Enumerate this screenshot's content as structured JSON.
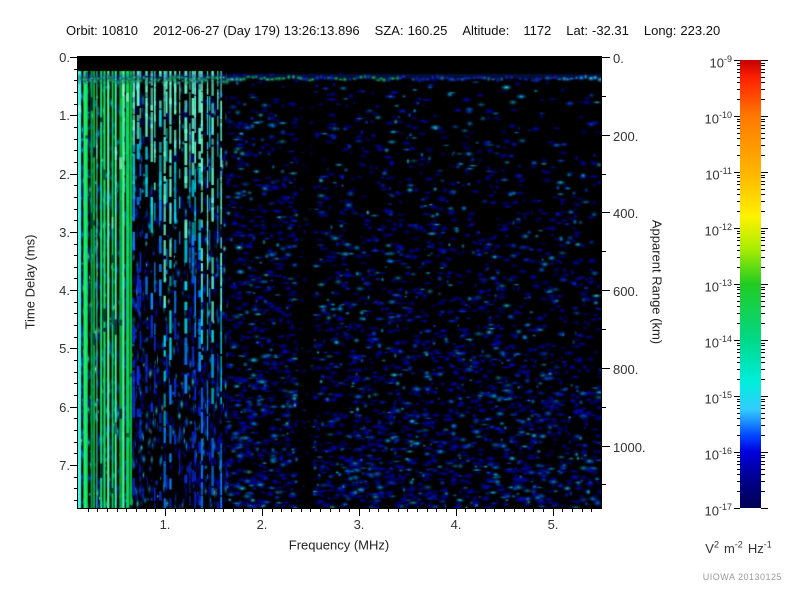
{
  "header": {
    "fields": [
      {
        "label": "Orbit:",
        "value": "10810"
      },
      {
        "label": "",
        "value": "2012-06-27 (Day 179) 13:26:13.896"
      },
      {
        "label": "SZA:",
        "value": "160.25"
      },
      {
        "label": "Altitude:",
        "value": "1172",
        "gap": 10
      },
      {
        "label": "Lat:",
        "value": "-32.31"
      },
      {
        "label": "Long:",
        "value": "223.20"
      }
    ]
  },
  "plot": {
    "x_axis": {
      "title": "Frequency (MHz)",
      "tick_labels": [
        "1.",
        "2.",
        "3.",
        "4.",
        "5."
      ],
      "tick_values": [
        1,
        2,
        3,
        4,
        5
      ],
      "range": [
        0.1,
        5.5
      ],
      "minor_step": 0.1
    },
    "y_axis_left": {
      "title": "Time Delay (ms)",
      "tick_labels": [
        "0.",
        "1.",
        "2.",
        "3.",
        "4.",
        "5.",
        "6.",
        "7."
      ],
      "tick_values": [
        0,
        1,
        2,
        3,
        4,
        5,
        6,
        7
      ],
      "range": [
        0,
        7.74
      ],
      "minor_step": 0.2
    },
    "y_axis_right": {
      "title": "Apparent Range (km)",
      "tick_labels": [
        "0.",
        "200.",
        "400.",
        "600.",
        "800.",
        "1000."
      ],
      "tick_values": [
        0,
        200,
        400,
        600,
        800,
        1000
      ],
      "minor_step": 100
    }
  },
  "colorbar": {
    "scale": "log",
    "tick_base": "10",
    "tick_exponents": [
      "-9",
      "-10",
      "-11",
      "-12",
      "-13",
      "-14",
      "-15",
      "-16",
      "-17"
    ],
    "unit_parts": [
      {
        "t": "V",
        "e": "2"
      },
      {
        "t": "m",
        "e": "-2"
      },
      {
        "t": "Hz",
        "e": "-1"
      }
    ],
    "gradient_stops": [
      "#c40000 0%",
      "#ff2000 4%",
      "#ff7800 12.5%",
      "#ffb400 25%",
      "#fff200 35%",
      "#aaee00 42%",
      "#22cc22 50%",
      "#00d988 62.5%",
      "#00eedd 72%",
      "#33ccff 78%",
      "#0044ff 84%",
      "#0000dd 87.5%",
      "#000088 94%",
      "#000055 100%"
    ]
  },
  "credit": "UIOWA 20130125",
  "palette": {
    "background": "#000000",
    "frame": "#000000",
    "stripe_greens": [
      "#00d84a",
      "#17f468",
      "#00b93c",
      "#4dff92",
      "#00e258"
    ],
    "stripe_cyan": "#49f6e0",
    "stripe_hotspot": "#c8ffe8",
    "streak_bright": "#66ffd0",
    "streak_cyan": "#00d9e8",
    "streak_mid": "#0b86ff",
    "streak_dim": "#0a2ce0",
    "band_green": "#23e05c",
    "band_cyan": "#39f0c8",
    "band_blue": "#1b3cf0",
    "band_lightblue": "#2e9bff",
    "band_edge_cyan": "#3fe8ff"
  },
  "chart_data": {
    "type": "heatmap",
    "title": "Orbit 10810 — 2012-06-27 (Day 179) 13:26:13.896, SZA 160.25, Altitude 1172, Lat -32.31, Long 223.20",
    "x": {
      "label": "Frequency (MHz)",
      "range": [
        0.1,
        5.5
      ],
      "ticks": [
        1,
        2,
        3,
        4,
        5
      ]
    },
    "y": {
      "label": "Time Delay (ms)",
      "range": [
        0,
        7.74
      ],
      "ticks": [
        0,
        1,
        2,
        3,
        4,
        5,
        6,
        7
      ],
      "direction": "down"
    },
    "y2": {
      "label": "Apparent Range (km)",
      "ticks": [
        0,
        200,
        400,
        600,
        800,
        1000
      ],
      "relation": "range_km = time_delay_ms * 150"
    },
    "colorbar": {
      "label": "V² m⁻² Hz⁻¹",
      "scale": "log",
      "min": 1e-17,
      "max": 1e-09,
      "ticks": [
        "1e-9",
        "1e-10",
        "1e-11",
        "1e-12",
        "1e-13",
        "1e-14",
        "1e-15",
        "1e-16",
        "1e-17"
      ],
      "color_order_top_to_bottom": [
        "red",
        "orange",
        "yellow",
        "green",
        "cyan",
        "blue",
        "dark navy"
      ]
    },
    "features": [
      {
        "name": "transmit-blank-strip",
        "time_delay_ms": [
          0,
          0.25
        ],
        "freq_MHz": [
          0.1,
          5.5
        ],
        "intensity": "black, below 1e-17"
      },
      {
        "name": "first-echo-band",
        "time_delay_ms": [
          0.26,
          0.48
        ],
        "freq_MHz": [
          0.1,
          5.5
        ],
        "intensity": "green/cyan ~1e-12 below 2.6 MHz, fading to blue ~1e-15 at high frequency, brighter cyan again near 5.3-5.5 MHz"
      },
      {
        "name": "plasma-resonance-stripes",
        "freq_MHz": [
          0.1,
          0.65
        ],
        "time_delay_ms": [
          0.26,
          7.74
        ],
        "intensity": "bright green vertical stripes ~1e-12, full height"
      },
      {
        "name": "cyan-streak-columns",
        "freq_MHz": [
          0.65,
          1.55
        ],
        "time_delay_ms": [
          0.26,
          7.74
        ],
        "intensity": "cyan ~1e-13 near top fading to blue ~1e-16 with depth"
      },
      {
        "name": "diffuse-noise-speckle",
        "freq_MHz": [
          1.0,
          5.5
        ],
        "intensity": "blue blobs ~1e-16 to 1e-15; density increases with time delay and decreases with frequency; top-right quadrant nearly empty"
      },
      {
        "name": "quiet-gap",
        "freq_MHz": [
          2.3,
          2.45
        ],
        "intensity": "dark vertical column, near background level"
      }
    ]
  }
}
